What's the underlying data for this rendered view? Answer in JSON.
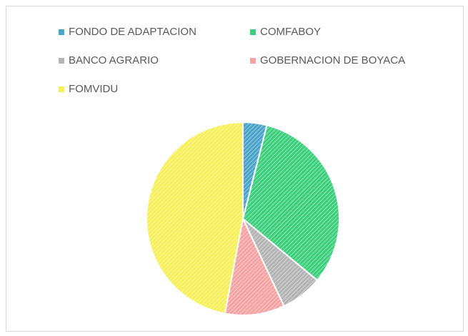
{
  "chart_data": {
    "type": "pie",
    "categories": [
      "FONDO DE ADAPTACION",
      "COMFABOY",
      "BANCO AGRARIO",
      "GOBERNACION DE BOYACA",
      "FOMVIDU"
    ],
    "values": [
      4,
      32,
      7,
      10,
      47
    ],
    "colors": [
      "#4aa3c8",
      "#3ccf7c",
      "#b4b4b4",
      "#f4a3a3",
      "#f7f05a"
    ]
  }
}
